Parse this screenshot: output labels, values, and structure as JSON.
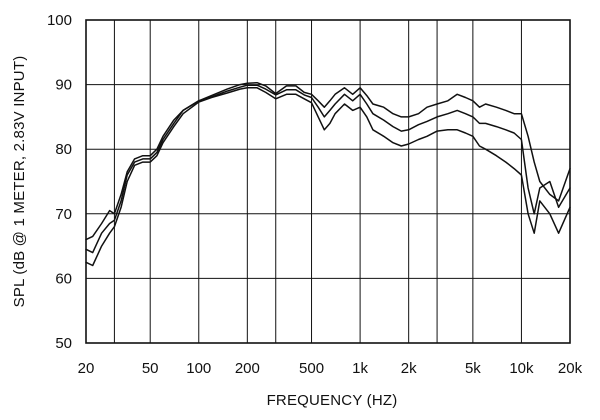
{
  "chart_data": {
    "type": "line",
    "title": "",
    "xlabel": "FREQUENCY  (HZ)",
    "ylabel": "SPL (dB @ 1 METER, 2.83V INPUT)",
    "xscale": "log",
    "xlim": [
      20,
      20000
    ],
    "ylim": [
      50,
      100
    ],
    "grid": true,
    "legend": "none",
    "line_color": "#111111",
    "x_ticks": [
      {
        "value": 20,
        "label": "20"
      },
      {
        "value": 50,
        "label": "50"
      },
      {
        "value": 100,
        "label": "100"
      },
      {
        "value": 200,
        "label": "200"
      },
      {
        "value": 500,
        "label": "500"
      },
      {
        "value": 1000,
        "label": "1k"
      },
      {
        "value": 2000,
        "label": "2k"
      },
      {
        "value": 5000,
        "label": "5k"
      },
      {
        "value": 10000,
        "label": "10k"
      },
      {
        "value": 20000,
        "label": "20k"
      }
    ],
    "y_ticks": [
      {
        "value": 50,
        "label": "50"
      },
      {
        "value": 60,
        "label": "60"
      },
      {
        "value": 70,
        "label": "70"
      },
      {
        "value": 80,
        "label": "80"
      },
      {
        "value": 90,
        "label": "90"
      },
      {
        "value": 100,
        "label": "100"
      }
    ],
    "x_grid_values": [
      20,
      30,
      50,
      100,
      200,
      300,
      500,
      1000,
      2000,
      3000,
      5000,
      10000,
      20000
    ],
    "series": [
      {
        "x": [
          20,
          22,
          25,
          28,
          30,
          33,
          36,
          40,
          45,
          50,
          55,
          60,
          70,
          80,
          100,
          120,
          150,
          180,
          200,
          230,
          260,
          300,
          350,
          400,
          450,
          500,
          550,
          600,
          650,
          700,
          800,
          900,
          1000,
          1100,
          1200,
          1400,
          1600,
          1800,
          2000,
          2300,
          2600,
          3000,
          3500,
          4000,
          4500,
          5000,
          5500,
          6000,
          7000,
          8000,
          9000,
          10000,
          11000,
          12000,
          13000,
          15000,
          17000,
          20000
        ],
        "values": [
          66,
          66.5,
          68.5,
          70.5,
          70,
          73,
          76.5,
          78.5,
          79,
          79,
          80,
          82,
          84.5,
          86,
          87.5,
          88.3,
          89.3,
          90,
          90.2,
          90.3,
          89.8,
          88.6,
          89.8,
          89.8,
          88.8,
          88.5,
          87.5,
          86.5,
          87.5,
          88.5,
          89.5,
          88.5,
          89.5,
          88.3,
          87,
          86.5,
          85.5,
          85,
          85,
          85.5,
          86.5,
          87,
          87.5,
          88.5,
          88,
          87.5,
          86.5,
          87,
          86.5,
          86,
          85.5,
          85.5,
          82,
          78,
          75,
          73,
          72,
          77
        ]
      },
      {
        "x": [
          20,
          22,
          25,
          28,
          30,
          33,
          36,
          40,
          45,
          50,
          55,
          60,
          70,
          80,
          100,
          120,
          150,
          180,
          200,
          230,
          260,
          300,
          350,
          400,
          450,
          500,
          550,
          600,
          650,
          700,
          800,
          900,
          1000,
          1100,
          1200,
          1400,
          1600,
          1800,
          2000,
          2300,
          2600,
          3000,
          3500,
          4000,
          4500,
          5000,
          5500,
          6000,
          7000,
          8000,
          9000,
          10000,
          11000,
          12000,
          13000,
          15000,
          17000,
          20000
        ],
        "values": [
          64.5,
          64,
          67,
          68.5,
          69,
          72,
          76,
          78,
          78.5,
          78.5,
          79.5,
          81.5,
          84,
          86,
          87.5,
          88.1,
          89,
          89.6,
          89.9,
          89.9,
          89.3,
          88.4,
          89.2,
          89.2,
          88.4,
          88,
          86.5,
          85,
          86,
          87,
          88.5,
          87.5,
          88.5,
          87,
          85.5,
          84.5,
          83.5,
          82.8,
          83,
          83.8,
          84.3,
          85,
          85.5,
          86,
          85.5,
          85,
          84,
          84,
          83.5,
          83,
          82.5,
          81.5,
          74,
          70,
          74,
          75,
          71,
          74
        ]
      },
      {
        "x": [
          20,
          22,
          25,
          28,
          30,
          33,
          36,
          40,
          45,
          50,
          55,
          60,
          70,
          80,
          100,
          120,
          150,
          180,
          200,
          230,
          260,
          300,
          350,
          400,
          450,
          500,
          550,
          600,
          650,
          700,
          800,
          900,
          1000,
          1100,
          1200,
          1400,
          1600,
          1800,
          2000,
          2300,
          2600,
          3000,
          3500,
          4000,
          4500,
          5000,
          5500,
          6000,
          7000,
          8000,
          9000,
          10000,
          11000,
          12000,
          13000,
          15000,
          17000,
          20000
        ],
        "values": [
          62.5,
          62,
          65,
          67,
          68,
          71,
          75,
          77.5,
          78,
          78,
          79,
          81,
          83.5,
          85.5,
          87.3,
          88,
          88.7,
          89.3,
          89.5,
          89.5,
          88.8,
          87.8,
          88.5,
          88.5,
          87.8,
          87.2,
          85,
          83,
          84,
          85.5,
          87,
          86,
          86.5,
          85,
          83,
          82,
          81,
          80.5,
          80.8,
          81.5,
          82,
          82.8,
          83,
          83,
          82.5,
          82,
          80.5,
          80,
          79,
          78,
          77,
          76,
          70,
          67,
          72,
          70,
          67,
          71
        ]
      }
    ]
  }
}
